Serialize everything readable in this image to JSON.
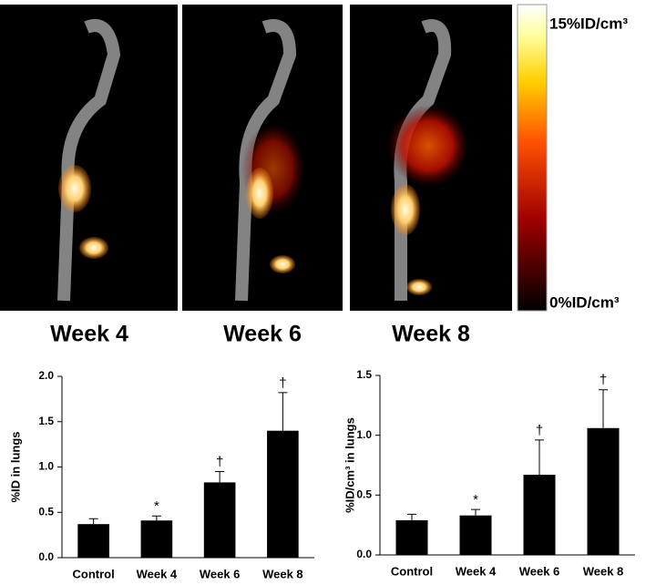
{
  "figure": {
    "panels": [
      "Week 4",
      "Week 6",
      "Week 8"
    ],
    "colorbar": {
      "max_label": "15%ID/cm³",
      "min_label": "0%ID/cm³"
    }
  },
  "chart_data": [
    {
      "type": "bar",
      "ylabel": "%ID in lungs",
      "categories": [
        "Control",
        "Week 4",
        "Week 6",
        "Week 8"
      ],
      "values": [
        0.37,
        0.41,
        0.83,
        1.4
      ],
      "errors": [
        0.06,
        0.05,
        0.12,
        0.42
      ],
      "markers": [
        null,
        "*",
        "†",
        "†"
      ],
      "color": "#000000",
      "ylim": [
        0,
        2
      ],
      "yticks": [
        {
          "value": 0,
          "label": "0.0"
        },
        0.5,
        {
          "value": 1,
          "label": "1.0"
        },
        1.5,
        {
          "value": 2,
          "label": "2.0"
        }
      ]
    },
    {
      "type": "bar",
      "ylabel": "%ID/cm³ in lungs",
      "categories": [
        "Control",
        "Week 4",
        "Week 6",
        "Week 8"
      ],
      "values": [
        0.29,
        0.33,
        0.67,
        1.06
      ],
      "errors": [
        0.05,
        0.05,
        0.29,
        0.32
      ],
      "markers": [
        null,
        "*",
        "†",
        "†"
      ],
      "color": "#000000",
      "ylim": [
        0,
        1.5
      ],
      "yticks": [
        {
          "value": 0,
          "label": "0.0"
        },
        0.5,
        {
          "value": 1,
          "label": "1.0"
        },
        1.5
      ]
    }
  ]
}
